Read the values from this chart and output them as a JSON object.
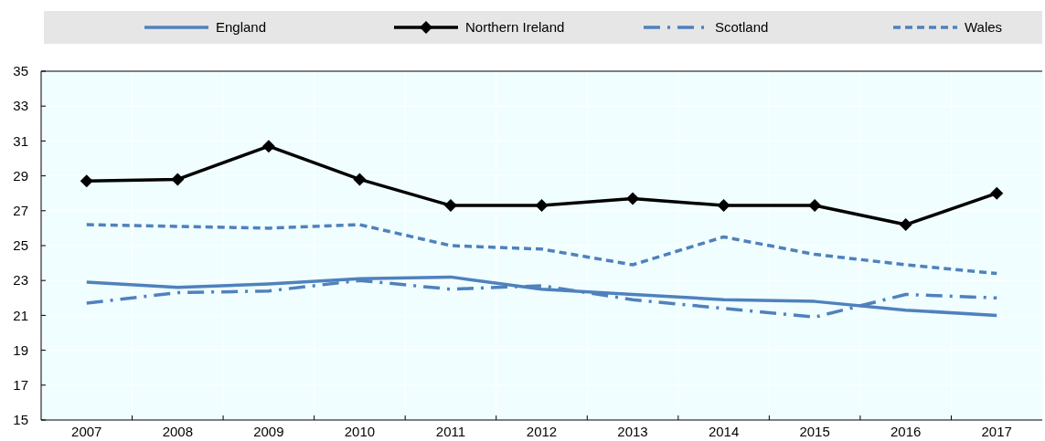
{
  "chart_data": {
    "type": "line",
    "categories": [
      "2007",
      "2008",
      "2009",
      "2010",
      "2011",
      "2012",
      "2013",
      "2014",
      "2015",
      "2016",
      "2017"
    ],
    "series": [
      {
        "name": "England",
        "color": "#4f81bd",
        "line_style": "solid",
        "marker": "none",
        "values": [
          22.9,
          22.6,
          22.8,
          23.1,
          23.2,
          22.5,
          22.2,
          21.9,
          21.8,
          21.3,
          21.0
        ]
      },
      {
        "name": "Northern Ireland",
        "color": "#000000",
        "line_style": "solid",
        "marker": "diamond",
        "values": [
          28.7,
          28.8,
          30.7,
          28.8,
          27.3,
          27.3,
          27.7,
          27.3,
          27.3,
          26.2,
          28.0
        ]
      },
      {
        "name": "Scotland",
        "color": "#4f81bd",
        "line_style": "dashdot",
        "marker": "none",
        "values": [
          21.7,
          22.3,
          22.4,
          23.0,
          22.5,
          22.7,
          21.9,
          21.4,
          20.9,
          22.2,
          22.0
        ]
      },
      {
        "name": "Wales",
        "color": "#4f81bd",
        "line_style": "dashed",
        "marker": "none",
        "values": [
          26.2,
          26.1,
          26.0,
          26.2,
          25.0,
          24.8,
          23.9,
          25.5,
          24.5,
          23.9,
          23.4
        ]
      }
    ],
    "ylim": [
      15,
      35
    ],
    "yticks": [
      15,
      17,
      19,
      21,
      23,
      25,
      27,
      29,
      31,
      33,
      35
    ],
    "grid": true,
    "legend": "top"
  }
}
